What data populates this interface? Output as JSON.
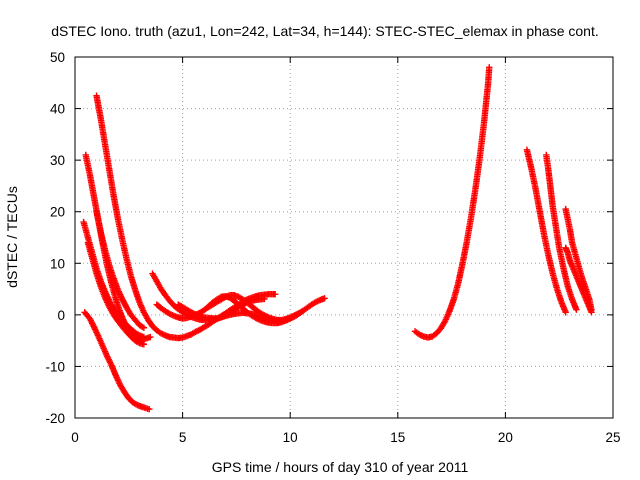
{
  "chart_data": {
    "type": "scatter",
    "title": "dSTEC Iono. truth (azu1, Lon=242, Lat=34, h=144): STEC-STEC_elemax in phase cont.",
    "xlabel": "GPS time / hours of day 310 of year 2011",
    "ylabel": "dSTEC  / TECUs",
    "xlim": [
      0,
      25
    ],
    "ylim": [
      -20,
      50
    ],
    "xticks": [
      "0",
      "5",
      "10",
      "15",
      "20",
      "25"
    ],
    "yticks": [
      "-20",
      "-10",
      "0",
      "10",
      "20",
      "30",
      "40",
      "50"
    ],
    "grid": true,
    "marker": "plus",
    "marker_color": "#ff0000",
    "series": [
      {
        "points": [
          [
            0.45,
            0.5
          ],
          [
            0.7,
            -0.8
          ],
          [
            0.9,
            -2.5
          ],
          [
            1.1,
            -4.3
          ],
          [
            1.3,
            -6.2
          ],
          [
            1.5,
            -8.1
          ],
          [
            1.7,
            -9.8
          ],
          [
            1.9,
            -11.8
          ],
          [
            2.1,
            -13.6
          ],
          [
            2.3,
            -15
          ],
          [
            2.5,
            -16.2
          ],
          [
            2.7,
            -17
          ],
          [
            2.9,
            -17.5
          ],
          [
            3.1,
            -17.8
          ],
          [
            3.3,
            -18.1
          ],
          [
            3.45,
            -18.3
          ]
        ]
      },
      {
        "points": [
          [
            0.5,
            31
          ],
          [
            0.7,
            27
          ],
          [
            0.9,
            22.5
          ],
          [
            1.1,
            18
          ],
          [
            1.3,
            13.5
          ],
          [
            1.5,
            9.5
          ],
          [
            1.7,
            6
          ],
          [
            1.9,
            3
          ],
          [
            2.1,
            0.5
          ],
          [
            2.3,
            -1.5
          ],
          [
            2.5,
            -3
          ],
          [
            2.7,
            -4
          ],
          [
            2.9,
            -4.6
          ],
          [
            3.1,
            -4.8
          ],
          [
            3.3,
            -4.6
          ],
          [
            3.5,
            -4.3
          ]
        ]
      },
      {
        "points": [
          [
            0.4,
            18
          ],
          [
            0.6,
            15
          ],
          [
            0.8,
            12
          ],
          [
            1.0,
            9
          ],
          [
            1.2,
            6.5
          ],
          [
            1.4,
            4.5
          ],
          [
            1.6,
            2.7
          ],
          [
            1.8,
            1.2
          ],
          [
            2.0,
            0
          ],
          [
            2.2,
            -1
          ],
          [
            2.4,
            -2
          ],
          [
            2.6,
            -2.8
          ],
          [
            2.8,
            -3.5
          ],
          [
            3.0,
            -4
          ],
          [
            3.2,
            -4.3
          ]
        ]
      },
      {
        "points": [
          [
            0.6,
            14
          ],
          [
            0.8,
            11
          ],
          [
            1.0,
            8
          ],
          [
            1.2,
            5.5
          ],
          [
            1.4,
            3.3
          ],
          [
            1.6,
            1.5
          ],
          [
            1.8,
            0
          ],
          [
            2.0,
            -1.2
          ],
          [
            2.2,
            -2.3
          ],
          [
            2.4,
            -3.3
          ],
          [
            2.6,
            -4.2
          ],
          [
            2.8,
            -5
          ],
          [
            3.0,
            -5.5
          ],
          [
            3.2,
            -5.7
          ]
        ]
      },
      {
        "points": [
          [
            1.0,
            20
          ],
          [
            1.2,
            16
          ],
          [
            1.4,
            12.5
          ],
          [
            1.6,
            9.5
          ],
          [
            1.8,
            7
          ],
          [
            2.0,
            4.8
          ],
          [
            2.2,
            3
          ],
          [
            2.4,
            1.4
          ],
          [
            2.6,
            0
          ],
          [
            2.8,
            -1
          ],
          [
            3.0,
            -2
          ],
          [
            3.2,
            -2.5
          ]
        ]
      },
      {
        "points": [
          [
            1.0,
            42.5
          ],
          [
            1.2,
            38
          ],
          [
            1.4,
            33
          ],
          [
            1.6,
            28
          ],
          [
            1.8,
            23
          ],
          [
            2.0,
            18.5
          ],
          [
            2.2,
            14.5
          ],
          [
            2.4,
            10.8
          ],
          [
            2.6,
            7.5
          ],
          [
            2.8,
            4.8
          ],
          [
            3.0,
            2.4
          ],
          [
            3.2,
            0.5
          ],
          [
            3.4,
            -1
          ],
          [
            3.6,
            -2.2
          ],
          [
            3.8,
            -3
          ],
          [
            4.0,
            -3.6
          ],
          [
            4.2,
            -4
          ],
          [
            4.4,
            -4.3
          ],
          [
            4.6,
            -4.4
          ],
          [
            4.8,
            -4.5
          ],
          [
            5.0,
            -4.4
          ],
          [
            5.2,
            -4.1
          ],
          [
            5.4,
            -3.8
          ],
          [
            5.6,
            -3.3
          ],
          [
            5.8,
            -2.9
          ],
          [
            6.0,
            -2.4
          ],
          [
            6.2,
            -1.9
          ],
          [
            6.4,
            -1.3
          ],
          [
            6.6,
            -0.8
          ],
          [
            6.8,
            -0.2
          ],
          [
            7.0,
            0.3
          ],
          [
            7.2,
            0.9
          ],
          [
            7.4,
            1.4
          ],
          [
            7.6,
            2
          ],
          [
            7.8,
            2.5
          ],
          [
            8.0,
            3
          ],
          [
            8.2,
            3.3
          ],
          [
            8.4,
            3.6
          ],
          [
            8.6,
            3.8
          ],
          [
            8.8,
            3.9
          ],
          [
            9.0,
            4
          ],
          [
            9.2,
            4
          ],
          [
            9.3,
            4
          ]
        ]
      },
      {
        "points": [
          [
            3.6,
            8
          ],
          [
            3.8,
            6.5
          ],
          [
            4.0,
            5
          ],
          [
            4.2,
            3.8
          ],
          [
            4.4,
            2.7
          ],
          [
            4.6,
            1.8
          ],
          [
            4.8,
            1.1
          ],
          [
            5.0,
            0.5
          ],
          [
            5.2,
            0
          ],
          [
            5.4,
            -0.4
          ],
          [
            5.6,
            -0.7
          ],
          [
            5.8,
            -0.9
          ],
          [
            6.0,
            -1
          ],
          [
            6.2,
            -1
          ],
          [
            6.4,
            -0.9
          ],
          [
            6.6,
            -0.7
          ],
          [
            6.8,
            -0.4
          ],
          [
            7.0,
            0
          ],
          [
            7.2,
            0.5
          ],
          [
            7.4,
            1
          ],
          [
            7.6,
            1.5
          ],
          [
            7.8,
            2
          ],
          [
            8.0,
            2.4
          ],
          [
            8.2,
            2.7
          ],
          [
            8.4,
            2.9
          ],
          [
            8.6,
            3
          ],
          [
            8.8,
            3.1
          ]
        ]
      },
      {
        "points": [
          [
            3.8,
            2
          ],
          [
            4.0,
            1.3
          ],
          [
            4.2,
            0.7
          ],
          [
            4.4,
            0.2
          ],
          [
            4.6,
            -0.2
          ],
          [
            4.8,
            -0.5
          ],
          [
            5.0,
            -0.7
          ],
          [
            5.2,
            -0.6
          ],
          [
            5.4,
            -0.3
          ],
          [
            5.6,
            0
          ],
          [
            5.8,
            0.4
          ],
          [
            6.0,
            0.9
          ],
          [
            6.2,
            1.6
          ],
          [
            6.4,
            2.4
          ],
          [
            6.6,
            3
          ],
          [
            6.8,
            3.5
          ],
          [
            7.0,
            3.6
          ],
          [
            7.2,
            3.3
          ],
          [
            7.4,
            2.7
          ],
          [
            7.6,
            2
          ],
          [
            7.8,
            1.2
          ],
          [
            8.0,
            0.5
          ],
          [
            8.2,
            -0.1
          ],
          [
            8.4,
            -0.6
          ],
          [
            8.6,
            -1
          ],
          [
            8.8,
            -1.3
          ],
          [
            9.0,
            -1.5
          ],
          [
            9.2,
            -1.6
          ],
          [
            9.4,
            -1.6
          ],
          [
            9.6,
            -1.4
          ],
          [
            9.8,
            -1.1
          ],
          [
            10.0,
            -0.7
          ],
          [
            10.2,
            -0.3
          ],
          [
            10.4,
            0.2
          ]
        ]
      },
      {
        "points": [
          [
            4.8,
            2
          ],
          [
            5.0,
            1.5
          ],
          [
            5.2,
            1
          ],
          [
            5.4,
            0.5
          ],
          [
            5.6,
            0.1
          ],
          [
            5.8,
            -0.2
          ],
          [
            6.0,
            -0.5
          ],
          [
            6.2,
            -0.6
          ],
          [
            6.4,
            -0.7
          ],
          [
            6.6,
            -0.7
          ],
          [
            6.8,
            -0.5
          ],
          [
            7.0,
            -0.2
          ],
          [
            7.2,
            0
          ],
          [
            7.4,
            0.2
          ],
          [
            7.6,
            0.3
          ],
          [
            7.8,
            0.4
          ],
          [
            8.0,
            0.3
          ],
          [
            8.2,
            0.2
          ],
          [
            8.4,
            0
          ],
          [
            8.6,
            -0.3
          ],
          [
            8.8,
            -0.6
          ],
          [
            9.0,
            -0.9
          ],
          [
            9.2,
            -1.1
          ],
          [
            9.4,
            -1.2
          ],
          [
            9.6,
            -1.2
          ],
          [
            9.8,
            -1
          ],
          [
            10.0,
            -0.7
          ],
          [
            10.2,
            -0.3
          ],
          [
            10.4,
            0.2
          ],
          [
            10.6,
            0.8
          ],
          [
            10.8,
            1.4
          ],
          [
            11.0,
            2
          ],
          [
            11.2,
            2.5
          ],
          [
            11.4,
            2.9
          ],
          [
            11.6,
            3.2
          ]
        ]
      },
      {
        "points": [
          [
            6.2,
            1.5
          ],
          [
            6.4,
            2
          ],
          [
            6.6,
            2.5
          ],
          [
            6.8,
            3
          ],
          [
            7.0,
            3.5
          ],
          [
            7.2,
            3.8
          ],
          [
            7.4,
            3.8
          ],
          [
            7.6,
            3.5
          ],
          [
            7.8,
            3
          ],
          [
            8.0,
            2.4
          ],
          [
            8.2,
            1.7
          ],
          [
            8.4,
            1
          ],
          [
            8.6,
            0.4
          ],
          [
            8.8,
            -0.1
          ],
          [
            9.0,
            -0.5
          ],
          [
            9.2,
            -0.8
          ],
          [
            9.4,
            -1
          ],
          [
            9.6,
            -1
          ],
          [
            9.8,
            -0.8
          ],
          [
            10.0,
            -0.5
          ],
          [
            10.2,
            -0.1
          ],
          [
            10.4,
            0.3
          ],
          [
            10.6,
            0.8
          ]
        ]
      },
      {
        "points": [
          [
            15.8,
            -3.2
          ],
          [
            16.0,
            -3.8
          ],
          [
            16.2,
            -4.2
          ],
          [
            16.4,
            -4.4
          ],
          [
            16.6,
            -4.2
          ],
          [
            16.8,
            -3.6
          ],
          [
            17.0,
            -2.6
          ],
          [
            17.2,
            -1.2
          ],
          [
            17.4,
            0.7
          ],
          [
            17.6,
            3
          ],
          [
            17.8,
            6
          ],
          [
            18.0,
            9.8
          ],
          [
            18.2,
            14
          ],
          [
            18.4,
            18.8
          ],
          [
            18.6,
            24.2
          ],
          [
            18.8,
            30.2
          ],
          [
            19.0,
            37
          ],
          [
            19.1,
            41
          ],
          [
            19.2,
            45
          ],
          [
            19.25,
            48
          ]
        ]
      },
      {
        "points": [
          [
            21.0,
            32
          ],
          [
            21.2,
            28.5
          ],
          [
            21.4,
            24.5
          ],
          [
            21.6,
            20
          ],
          [
            21.8,
            15.5
          ],
          [
            22.0,
            11.5
          ],
          [
            22.2,
            8
          ],
          [
            22.4,
            5
          ],
          [
            22.6,
            2.5
          ],
          [
            22.8,
            0.5
          ]
        ]
      },
      {
        "points": [
          [
            21.9,
            31
          ],
          [
            22.0,
            28
          ],
          [
            22.1,
            24.5
          ],
          [
            22.2,
            21
          ],
          [
            22.35,
            17
          ],
          [
            22.5,
            13
          ],
          [
            22.7,
            9
          ],
          [
            22.9,
            5.5
          ],
          [
            23.1,
            3
          ],
          [
            23.3,
            1
          ]
        ]
      },
      {
        "points": [
          [
            22.8,
            20.5
          ],
          [
            22.9,
            18.5
          ],
          [
            23.0,
            16.5
          ],
          [
            23.1,
            14
          ],
          [
            23.3,
            11
          ],
          [
            23.5,
            8
          ],
          [
            23.7,
            5.5
          ],
          [
            23.9,
            3
          ],
          [
            24.0,
            1
          ]
        ]
      },
      {
        "points": [
          [
            22.8,
            13
          ],
          [
            22.9,
            12
          ],
          [
            23.0,
            10.5
          ],
          [
            23.2,
            8.5
          ],
          [
            23.4,
            6.5
          ],
          [
            23.6,
            4.5
          ],
          [
            23.8,
            2.5
          ],
          [
            24.0,
            0.5
          ]
        ]
      }
    ]
  }
}
